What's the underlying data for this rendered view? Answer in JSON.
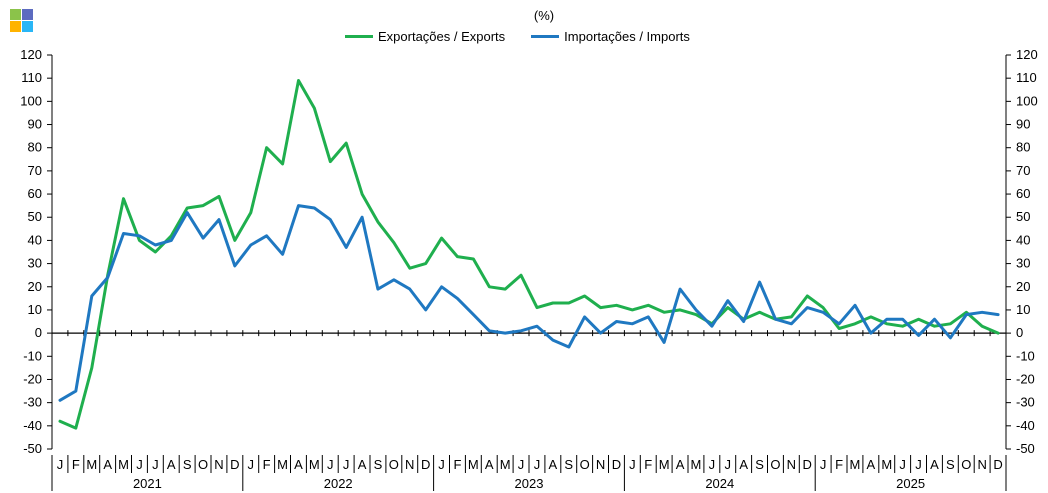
{
  "logo": {
    "icon": "four-square-logo-icon",
    "colors": [
      "#8BC34A",
      "#5C6BC0",
      "#FFB300",
      "#29B6F6"
    ]
  },
  "chart_data": {
    "type": "line",
    "title": "(%)",
    "series": [
      {
        "name": "Exportações / Exports",
        "color": "#1FAF4E",
        "values": [
          -38,
          -41,
          -15,
          25,
          58,
          40,
          35,
          42,
          54,
          55,
          59,
          40,
          52,
          80,
          73,
          109,
          97,
          74,
          82,
          60,
          48,
          39,
          28,
          30,
          41,
          33,
          32,
          20,
          19,
          25,
          11,
          13,
          13,
          16,
          11,
          12,
          10,
          12,
          9,
          10,
          8,
          4,
          11,
          6,
          9,
          6,
          7,
          16,
          11,
          2,
          4,
          7,
          4,
          3,
          6,
          3,
          4,
          9,
          3,
          0
        ]
      },
      {
        "name": "Importações / Imports",
        "color": "#1F78C1",
        "values": [
          -29,
          -25,
          16,
          24,
          43,
          42,
          38,
          40,
          52,
          41,
          49,
          29,
          38,
          42,
          34,
          55,
          54,
          49,
          37,
          50,
          19,
          23,
          19,
          10,
          20,
          15,
          8,
          1,
          0,
          1,
          3,
          -3,
          -6,
          7,
          0,
          5,
          4,
          7,
          -4,
          19,
          10,
          3,
          14,
          5,
          22,
          6,
          4,
          11,
          9,
          4,
          12,
          0,
          6,
          6,
          -1,
          6,
          -2,
          8,
          9,
          8
        ]
      }
    ],
    "ylim": [
      -50,
      120
    ],
    "yticks": [
      -50,
      -40,
      -30,
      -20,
      -10,
      0,
      10,
      20,
      30,
      40,
      50,
      60,
      70,
      80,
      90,
      100,
      110,
      120
    ],
    "month_labels": [
      "J",
      "F",
      "M",
      "A",
      "M",
      "J",
      "J",
      "A",
      "S",
      "O",
      "N",
      "D"
    ],
    "years": [
      "2021",
      "2022",
      "2023",
      "2024",
      "2025"
    ],
    "grid": false,
    "legend_position": "top-center"
  }
}
